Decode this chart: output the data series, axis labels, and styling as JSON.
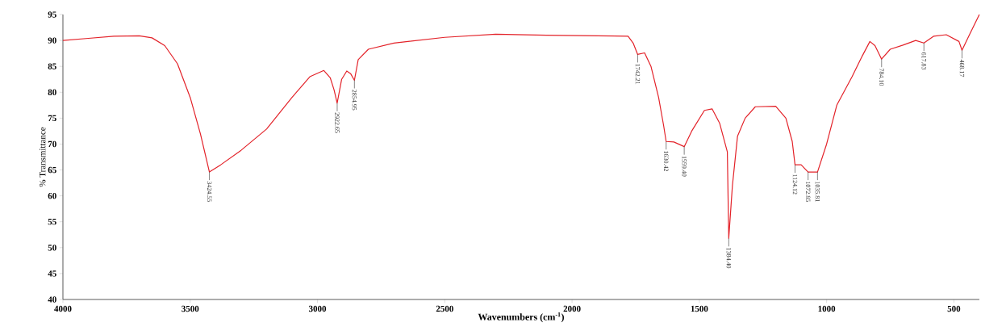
{
  "chart_data": {
    "type": "line",
    "xlabel": "Wavenumbers (cm$^{-1}$)",
    "ylabel": "% Transmittance",
    "xlim": [
      4000,
      400
    ],
    "ylim": [
      40,
      95
    ],
    "xticks": [
      4000,
      3500,
      3000,
      2500,
      2000,
      1500,
      1000,
      500
    ],
    "yticks": [
      40,
      45,
      50,
      55,
      60,
      65,
      70,
      75,
      80,
      85,
      90,
      95
    ],
    "x": [
      4000,
      3900,
      3800,
      3700,
      3650,
      3600,
      3550,
      3500,
      3460,
      3424.55,
      3380,
      3300,
      3200,
      3100,
      3030,
      2975,
      2950,
      2935,
      2922.65,
      2905,
      2885,
      2870,
      2854.95,
      2840,
      2800,
      2700,
      2500,
      2300,
      2100,
      1900,
      1780,
      1760,
      1742.21,
      1715,
      1690,
      1660,
      1640,
      1630.42,
      1600,
      1559.4,
      1530,
      1480,
      1450,
      1420,
      1390,
      1384.4,
      1370,
      1350,
      1320,
      1280,
      1200,
      1160,
      1135,
      1124.12,
      1100,
      1072.85,
      1035.81,
      1000,
      960,
      900,
      860,
      830,
      810,
      784.1,
      750,
      700,
      650,
      617.83,
      580,
      530,
      480,
      468.17,
      440,
      400
    ],
    "series": [
      {
        "color": "#e32229",
        "values": [
          90.0,
          90.4,
          90.8,
          90.9,
          90.5,
          89.0,
          85.5,
          79.0,
          72.0,
          64.6,
          66.0,
          68.8,
          72.9,
          79.0,
          83.0,
          84.2,
          82.8,
          80.5,
          77.9,
          82.5,
          84.1,
          83.6,
          82.3,
          86.3,
          88.3,
          89.5,
          90.6,
          91.2,
          91.0,
          90.9,
          90.8,
          89.5,
          87.3,
          87.6,
          85.0,
          79.0,
          73.5,
          70.5,
          70.4,
          69.5,
          72.5,
          76.5,
          76.8,
          74.0,
          68.5,
          51.8,
          62.0,
          71.5,
          75.0,
          77.2,
          77.3,
          75.0,
          70.5,
          66.0,
          66.0,
          64.6,
          64.6,
          70.0,
          77.5,
          83.0,
          87.0,
          89.8,
          89.0,
          86.4,
          88.3,
          89.1,
          90.0,
          89.5,
          90.8,
          91.1,
          89.8,
          88.1,
          91.0,
          95.0
        ]
      }
    ],
    "annotations": [
      {
        "text": "3424.55",
        "x": 3424.55,
        "y": 64.6
      },
      {
        "text": "2922.65",
        "x": 2922.65,
        "y": 77.9
      },
      {
        "text": "2854.95",
        "x": 2854.95,
        "y": 82.3
      },
      {
        "text": "1742.21",
        "x": 1742.21,
        "y": 87.3
      },
      {
        "text": "1630.42",
        "x": 1630.42,
        "y": 70.5
      },
      {
        "text": "1559.40",
        "x": 1559.4,
        "y": 69.5
      },
      {
        "text": "1384.40",
        "x": 1384.4,
        "y": 51.8
      },
      {
        "text": "1124.12",
        "x": 1124.12,
        "y": 66.0
      },
      {
        "text": "1072.85",
        "x": 1072.85,
        "y": 64.6
      },
      {
        "text": "1035.81",
        "x": 1035.81,
        "y": 64.6
      },
      {
        "text": "784.10",
        "x": 784.1,
        "y": 86.4
      },
      {
        "text": "617.83",
        "x": 617.83,
        "y": 89.5
      },
      {
        "text": "468.17",
        "x": 468.17,
        "y": 88.1
      }
    ]
  }
}
